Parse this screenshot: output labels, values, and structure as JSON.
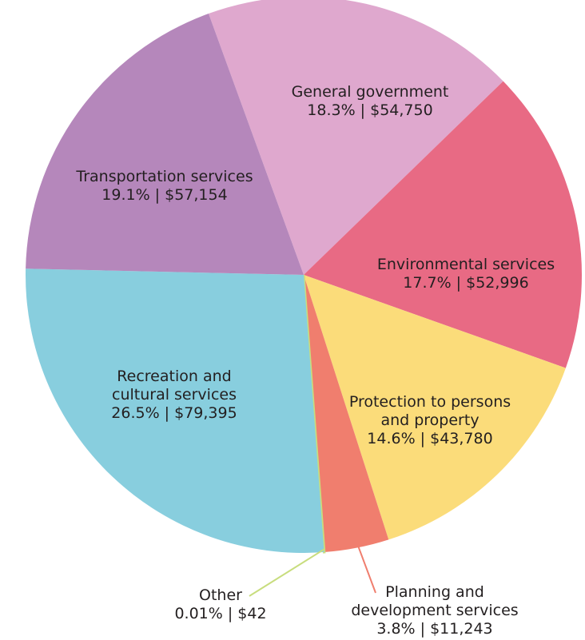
{
  "chart_data": {
    "type": "pie",
    "title": "",
    "slices": [
      {
        "label": "General government",
        "label_lines": [
          "General government"
        ],
        "percent_label": "18.3%",
        "value_label": "$54,750",
        "value": 54750,
        "color": "#DFA8CE"
      },
      {
        "label": "Environmental services",
        "label_lines": [
          "Environmental services"
        ],
        "percent_label": "17.7%",
        "value_label": "$52,996",
        "value": 52996,
        "color": "#E86A84"
      },
      {
        "label": "Protection to persons and property",
        "label_lines": [
          "Protection to persons",
          "and property"
        ],
        "percent_label": "14.6%",
        "value_label": "$43,780",
        "value": 43780,
        "color": "#FBDC7A"
      },
      {
        "label": "Planning and development services",
        "label_lines": [
          "Planning and",
          "development services"
        ],
        "percent_label": "3.8%",
        "value_label": "$11,243",
        "value": 11243,
        "color": "#F07E6E"
      },
      {
        "label": "Other",
        "label_lines": [
          "Other"
        ],
        "percent_label": "0.01%",
        "value_label": "$42",
        "value": 42,
        "color": "#C8DD7E"
      },
      {
        "label": "Recreation and cultural services",
        "label_lines": [
          "Recreation and",
          "cultural services"
        ],
        "percent_label": "26.5%",
        "value_label": "$79,395",
        "value": 79395,
        "color": "#88CEDE"
      },
      {
        "label": "Transportation services",
        "label_lines": [
          "Transportation services"
        ],
        "percent_label": "19.1%",
        "value_label": "$57,154",
        "value": 57154,
        "color": "#B587BB"
      }
    ]
  }
}
